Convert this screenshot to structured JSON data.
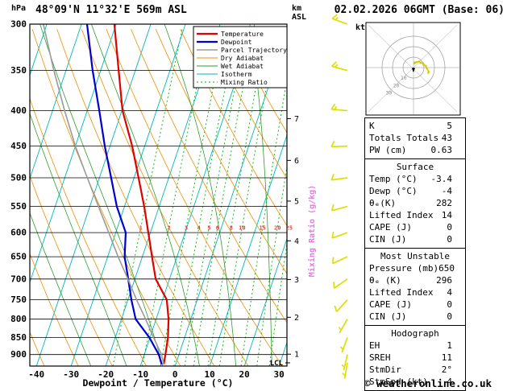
{
  "header": {
    "title": "48°09'N 11°32'E 569m ASL",
    "datetime": "02.02.2026 06GMT (Base: 06)"
  },
  "axes": {
    "pressure_unit": "hPa",
    "pressure_ticks": [
      300,
      350,
      400,
      450,
      500,
      550,
      600,
      650,
      700,
      750,
      800,
      850,
      900
    ],
    "temp_ticks": [
      -40,
      -30,
      -20,
      -10,
      0,
      10,
      20,
      30
    ],
    "x_label": "Dewpoint / Temperature (°C)",
    "altitude_unit_line1": "km",
    "altitude_unit_line2": "ASL",
    "km_ticks": [
      1,
      2,
      3,
      4,
      5,
      6,
      7
    ],
    "mixing_ratio_values": [
      1,
      2,
      3,
      4,
      5,
      6,
      8,
      10,
      15,
      20,
      25
    ],
    "mixing_ratio_axis_label": "Mixing Ratio (g/kg)",
    "lcl_label": "LCL"
  },
  "legend": {
    "items": [
      "Temperature",
      "Dewpoint",
      "Parcel Trajectory",
      "Dry Adiabat",
      "Wet Adiabat",
      "Isotherm",
      "Mixing Ratio"
    ]
  },
  "chart_data": {
    "type": "skewt_sounding",
    "pressure_hpa": [
      930,
      900,
      850,
      800,
      750,
      700,
      650,
      600,
      550,
      500,
      450,
      400,
      350,
      300
    ],
    "series": [
      {
        "name": "Temperature",
        "color": "#e00000",
        "values_c": [
          -3.4,
          -3.9,
          -4.8,
          -6.4,
          -8.8,
          -14.0,
          -17.2,
          -20.6,
          -24.3,
          -28.7,
          -33.6,
          -39.8,
          -44.8,
          -50.5
        ]
      },
      {
        "name": "Dewpoint",
        "color": "#0000cd",
        "values_c": [
          -4.0,
          -5.8,
          -10.2,
          -15.9,
          -19.0,
          -21.9,
          -25.1,
          -27.1,
          -32.2,
          -36.6,
          -41.5,
          -46.5,
          -52.3,
          -58.4
        ]
      },
      {
        "name": "Parcel Trajectory",
        "color": "#9a9a9a",
        "values_c": [
          -3.4,
          -5.0,
          -9.0,
          -13.0,
          -17.5,
          -22.0,
          -27.0,
          -32.0,
          -37.5,
          -43.5,
          -50.0,
          -56.5,
          -63.5,
          -71.0
        ]
      }
    ],
    "lcl_pressure_hpa": 925,
    "mixing_label_pressure_hpa": 590,
    "wind_barbs_kt": [
      {
        "p": 300,
        "dir": 290,
        "spd": 15
      },
      {
        "p": 350,
        "dir": 285,
        "spd": 15
      },
      {
        "p": 400,
        "dir": 275,
        "spd": 13
      },
      {
        "p": 450,
        "dir": 268,
        "spd": 12
      },
      {
        "p": 500,
        "dir": 262,
        "spd": 12
      },
      {
        "p": 550,
        "dir": 255,
        "spd": 10
      },
      {
        "p": 600,
        "dir": 250,
        "spd": 10
      },
      {
        "p": 650,
        "dir": 245,
        "spd": 10
      },
      {
        "p": 700,
        "dir": 235,
        "spd": 8
      },
      {
        "p": 750,
        "dir": 222,
        "spd": 8
      },
      {
        "p": 800,
        "dir": 210,
        "spd": 6
      },
      {
        "p": 850,
        "dir": 200,
        "spd": 5
      },
      {
        "p": 900,
        "dir": 193,
        "spd": 5
      },
      {
        "p": 925,
        "dir": 190,
        "spd": 4
      }
    ],
    "hodograph_storm": {
      "dir_deg": 2,
      "spd_kt": 4
    }
  },
  "hodograph": {
    "unit": "kt",
    "rings_kt": [
      10,
      20,
      30
    ]
  },
  "panel": {
    "indices": {
      "rows": [
        {
          "label": "K",
          "value": "5"
        },
        {
          "label": "Totals Totals",
          "value": "43"
        },
        {
          "label": "PW (cm)",
          "value": "0.63"
        }
      ]
    },
    "surface": {
      "title": "Surface",
      "rows": [
        {
          "label": "Temp (°C)",
          "value": "-3.4"
        },
        {
          "label": "Dewp (°C)",
          "value": "-4"
        },
        {
          "label": "θₑ(K)",
          "value": "282"
        },
        {
          "label": "Lifted Index",
          "value": "14"
        },
        {
          "label": "CAPE (J)",
          "value": "0"
        },
        {
          "label": "CIN (J)",
          "value": "0"
        }
      ]
    },
    "most_unstable": {
      "title": "Most Unstable",
      "rows": [
        {
          "label": "Pressure (mb)",
          "value": "650"
        },
        {
          "label": "θₑ (K)",
          "value": "296"
        },
        {
          "label": "Lifted Index",
          "value": "4"
        },
        {
          "label": "CAPE (J)",
          "value": "0"
        },
        {
          "label": "CIN (J)",
          "value": "0"
        }
      ]
    },
    "hodograph_stats": {
      "title": "Hodograph",
      "rows": [
        {
          "label": "EH",
          "value": "1"
        },
        {
          "label": "SREH",
          "value": "11"
        },
        {
          "label": "StmDir",
          "value": "2°"
        },
        {
          "label": "StmSpd (kt)",
          "value": "4"
        }
      ]
    }
  },
  "footer": {
    "copyright": "© weatheronline.co.uk"
  },
  "colors": {
    "temperature": "#e00000",
    "dewpoint": "#0000cd",
    "parcel": "#9a9a9a",
    "dry_adiabat": "#ef8f00",
    "wet_adiabat": "#2f9e2f",
    "isotherm": "#00b7b7",
    "mixing_ratio": "#00b400",
    "wind_barb": "#dede00",
    "mix_label": "#e04040",
    "mix_axis_label": "#e778e7",
    "grid": "#000000"
  }
}
